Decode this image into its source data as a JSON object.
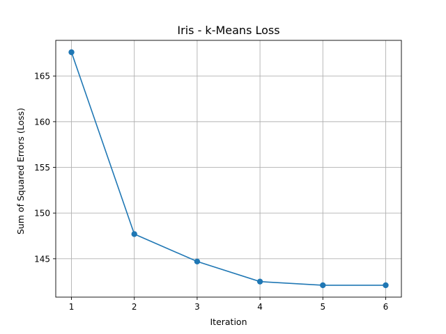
{
  "chart_data": {
    "type": "line",
    "title": "Iris - k-Means Loss",
    "xlabel": "Iteration",
    "ylabel": "Sum of Squared Errors (Loss)",
    "x": [
      1,
      2,
      3,
      4,
      5,
      6
    ],
    "series": [
      {
        "values": [
          167.6,
          147.7,
          144.7,
          142.5,
          142.1,
          142.1
        ],
        "color": "#1f77b4",
        "marker": "circle"
      }
    ],
    "xticks": [
      1,
      2,
      3,
      4,
      5,
      6
    ],
    "yticks": [
      145,
      150,
      155,
      160,
      165
    ],
    "xlim": [
      0.75,
      6.25
    ],
    "ylim": [
      140.8,
      168.9
    ],
    "grid": true,
    "legend": "none"
  }
}
